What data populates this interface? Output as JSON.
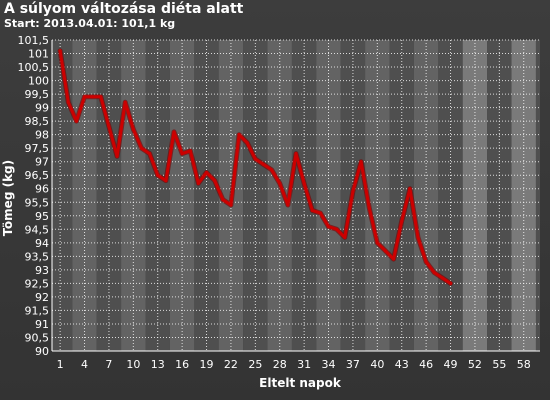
{
  "title": "A súlyom változása diéta alatt",
  "subtitle": "Start: 2013.04.01: 101,1 kg",
  "colors": {
    "line": "#cc0000",
    "text": "#ffffff",
    "background": "#3a3a3a",
    "band_dark": "#4f4f4f",
    "band_light": "#636363",
    "band_light_future": "#7a7a7a"
  },
  "chart_data": {
    "type": "line",
    "title": "A súlyom változása diéta alatt",
    "subtitle": "Start: 2013.04.01: 101,1 kg",
    "xlabel": "Eltelt napok",
    "ylabel": "Tömeg (kg)",
    "xlim": [
      0,
      60
    ],
    "ylim": [
      90,
      101.5
    ],
    "x_ticks": [
      1,
      4,
      7,
      10,
      13,
      16,
      19,
      22,
      25,
      28,
      31,
      34,
      37,
      40,
      43,
      46,
      49,
      52,
      55,
      58
    ],
    "y_ticks": [
      90,
      90.5,
      91,
      91.5,
      92,
      92.5,
      93,
      93.5,
      94,
      94.5,
      95,
      95.5,
      96,
      96.5,
      97,
      97.5,
      98,
      98.5,
      99,
      99.5,
      100,
      100.5,
      101,
      101.5
    ],
    "x_tick_labels": [
      "1",
      "4",
      "7",
      "10",
      "13",
      "16",
      "19",
      "22",
      "25",
      "28",
      "31",
      "34",
      "37",
      "40",
      "43",
      "46",
      "49",
      "52",
      "55",
      "58"
    ],
    "y_tick_labels": [
      "90",
      "90,5",
      "91",
      "91,5",
      "92",
      "92,5",
      "93",
      "93,5",
      "94",
      "94,5",
      "95",
      "95,5",
      "96",
      "96,5",
      "97",
      "97,5",
      "98",
      "98,5",
      "99",
      "99,5",
      "100",
      "100,5",
      "101",
      "101,5"
    ],
    "grid": true,
    "series": [
      {
        "name": "",
        "x": [
          1,
          2,
          3,
          4,
          5,
          6,
          7,
          8,
          9,
          10,
          11,
          12,
          13,
          14,
          15,
          16,
          17,
          18,
          19,
          20,
          21,
          22,
          23,
          24,
          25,
          26,
          27,
          28,
          29,
          30,
          31,
          32,
          33,
          34,
          35,
          36,
          37,
          38,
          39,
          40,
          41,
          42,
          43,
          44,
          45,
          46,
          47,
          48,
          49
        ],
        "y": [
          101.1,
          99.2,
          98.5,
          99.4,
          99.4,
          99.4,
          98.3,
          97.2,
          99.2,
          98.2,
          97.5,
          97.3,
          96.5,
          96.3,
          98.1,
          97.3,
          97.4,
          96.2,
          96.6,
          96.3,
          95.6,
          95.4,
          98.0,
          97.7,
          97.1,
          96.9,
          96.7,
          96.2,
          95.4,
          97.3,
          96.2,
          95.2,
          95.1,
          94.6,
          94.5,
          94.2,
          95.9,
          97.0,
          95.3,
          94.0,
          93.7,
          93.4,
          94.8,
          96.0,
          94.2,
          93.3,
          92.9,
          92.7,
          92.5
        ]
      }
    ]
  }
}
